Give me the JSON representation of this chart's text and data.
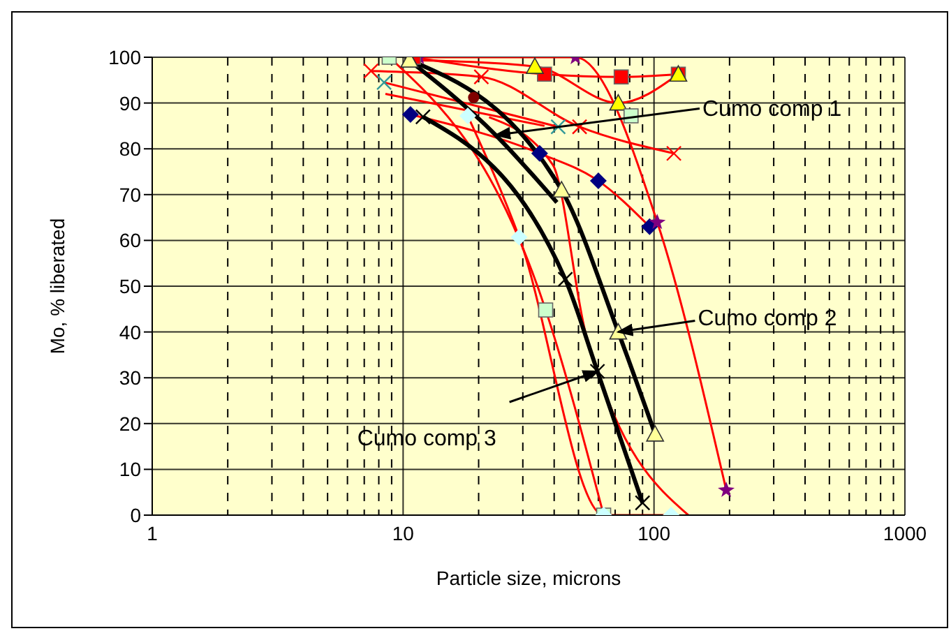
{
  "chart_data": {
    "type": "line",
    "xlabel": "Particle size, microns",
    "ylabel": "Mo, % liberated",
    "log": "x",
    "grid": true,
    "xlim": [
      1,
      1000
    ],
    "xticks": [
      1,
      10,
      100,
      1000
    ],
    "ylim": [
      0,
      100
    ],
    "yticks": [
      0,
      10,
      20,
      30,
      40,
      50,
      60,
      70,
      80,
      90,
      100
    ],
    "series": [
      {
        "color": "#ff0000",
        "marker": "square",
        "colors": [
          "#ccffcc",
          "#ccffcc",
          "#ccffcc"
        ],
        "x": [
          8.8,
          37,
          63
        ],
        "values": [
          100,
          44.8,
          0
        ]
      },
      {
        "color": "#ff0000",
        "marker": "diamond",
        "colors": [
          "#ccffff",
          "#ccffff",
          "#ccffff",
          "#ccffff"
        ],
        "x": [
          18.1,
          29,
          63,
          117
        ],
        "values": [
          87.2,
          60.7,
          0,
          0
        ]
      },
      {
        "color": "#ff0000",
        "marker": "none",
        "x": [
          22,
          39.5,
          53.8,
          137
        ],
        "values": [
          86.9,
          76.5,
          39,
          0
        ]
      },
      {
        "color": "#ff0000",
        "marker": "diamond",
        "colors": [
          "#000080",
          "#000080",
          "#000080",
          "#000080"
        ],
        "x": [
          10.7,
          35,
          60,
          96
        ],
        "values": [
          87.5,
          79,
          73,
          63
        ]
      },
      {
        "color": "#ff0000",
        "marker": "star",
        "colors": [
          "#800080",
          "#800080",
          "#800080",
          "#800080"
        ],
        "x": [
          11.6,
          48.6,
          103,
          194
        ],
        "values": [
          100,
          100,
          64,
          5.5
        ]
      },
      {
        "color": "#ff0000",
        "marker": "cross",
        "x": [
          7.45,
          20.5,
          50.5,
          120
        ],
        "values": [
          97,
          95.7,
          84.8,
          79
        ]
      },
      {
        "color": "#ff0000",
        "marker": "cross",
        "colors": [
          "#339999",
          "#339999"
        ],
        "x": [
          8.4,
          41.5
        ],
        "values": [
          94.5,
          84.8
        ]
      },
      {
        "color": "#ff0000",
        "marker": "none",
        "x": [
          8.5,
          36.6
        ],
        "values": [
          92,
          85
        ]
      },
      {
        "color": "#ff0000",
        "marker": "circle",
        "colors": [
          "#800000"
        ],
        "x": [
          19.1
        ],
        "values": [
          91.2
        ]
      },
      {
        "color": "#ff0000",
        "marker": "square",
        "x": [
          11,
          36.6,
          74,
          125
        ],
        "values": [
          100,
          96.3,
          95.7,
          96.3
        ]
      },
      {
        "color": "#ff0000",
        "marker": "triangle",
        "colors": [
          "#ffff00",
          "#ffff00",
          "#ffff00",
          "#ffff00"
        ],
        "x": [
          10.6,
          33.5,
          72,
          125
        ],
        "values": [
          99.4,
          98,
          90,
          96.3
        ]
      },
      {
        "color": "#ff0000",
        "marker": "square",
        "colors": [
          "#ccffcc"
        ],
        "x": [
          81
        ],
        "values": [
          87.2
        ]
      },
      {
        "color": "#000000",
        "marker": "none",
        "x": [
          10.2,
          23.4,
          41
        ],
        "values": [
          100,
          83,
          68.3
        ]
      },
      {
        "color": "#000000",
        "marker": "triangle",
        "colors": [
          "#ffff99",
          "#ffff99",
          "#ffff99",
          "#ffff99"
        ],
        "x": [
          10.6,
          42.8,
          72,
          101
        ],
        "values": [
          99.4,
          71,
          40,
          17.7
        ]
      },
      {
        "color": "#000000",
        "marker": "cross",
        "x": [
          12,
          44.3,
          59.5,
          90
        ],
        "values": [
          87,
          51.5,
          31.4,
          2.7
        ]
      }
    ],
    "annotations": [
      {
        "text": "Cumo comp 1",
        "x": 23.4,
        "y": 83
      },
      {
        "text": "Cumo comp 2",
        "x": 72,
        "y": 40
      },
      {
        "text": "Cumo comp 3",
        "x": 59.5,
        "y": 31.4
      }
    ]
  }
}
